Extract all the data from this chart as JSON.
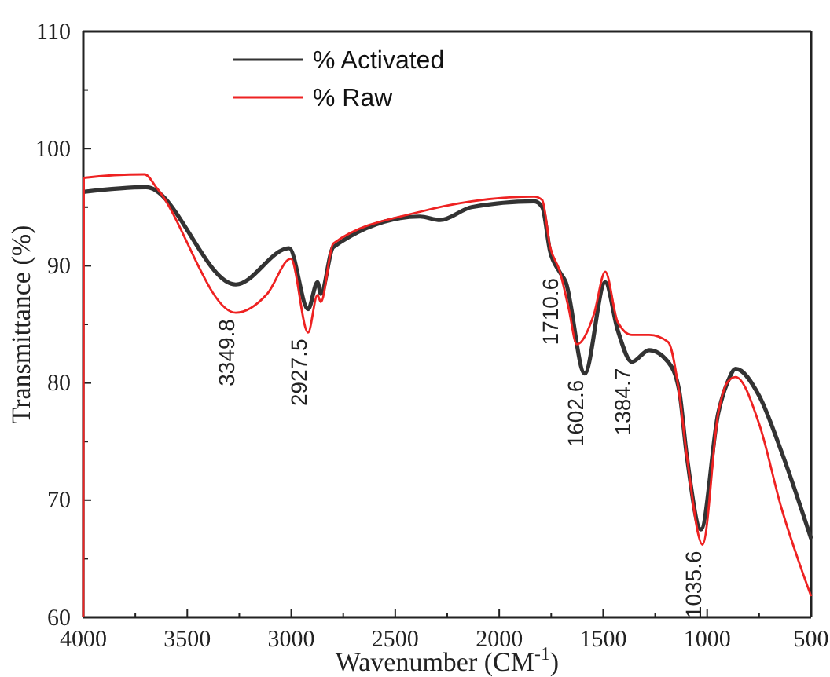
{
  "chart_data": {
    "type": "line",
    "xlabel": "Wavenumber (CM$^{-1}$)",
    "ylabel": "Transmittance (%)",
    "xlim": [
      4000,
      500
    ],
    "ylim": [
      60,
      110
    ],
    "xticks": [
      4000,
      {
        "value": 3750,
        "label": null
      },
      3500,
      {
        "value": 3250,
        "label": null
      },
      3000,
      {
        "value": 2750,
        "label": null
      },
      2500,
      {
        "value": 2250,
        "label": null
      },
      2000,
      {
        "value": 1750,
        "label": null
      },
      1500,
      {
        "value": 1250,
        "label": null
      },
      1000,
      {
        "value": 750,
        "label": null
      },
      500
    ],
    "yticks": [
      60,
      {
        "value": 65,
        "label": null
      },
      70,
      {
        "value": 75,
        "label": null
      },
      80,
      {
        "value": 85,
        "label": null
      },
      90,
      {
        "value": 95,
        "label": null
      },
      100,
      {
        "value": 105,
        "label": null
      },
      110
    ],
    "grid": false,
    "legend": "top left",
    "marker": "none",
    "line_style": "solid",
    "series": [
      {
        "name": "% Activated",
        "color": "#333333",
        "x": [
          4000,
          3698,
          3267,
          3010,
          2919,
          2874,
          2858,
          2798,
          2382,
          2284,
          2133,
          1831,
          1793,
          1755,
          1710,
          1680,
          1589,
          1490,
          1430,
          1362,
          1279,
          1188,
          1135,
          1098,
          1030,
          947,
          901,
          863,
          750,
          644,
          500
        ],
        "values": [
          96.3,
          96.7,
          88.4,
          91.5,
          86.3,
          88.6,
          87.6,
          91.6,
          94.2,
          93.9,
          95.0,
          95.5,
          95.0,
          91.2,
          89.5,
          88.6,
          80.8,
          88.6,
          84.5,
          81.8,
          82.8,
          81.8,
          79.4,
          73.8,
          67.5,
          77.4,
          80.1,
          81.2,
          78.9,
          74.2,
          66.7
        ]
      },
      {
        "name": "% Raw",
        "color": "#ee2222",
        "x": [
          4000,
          3998,
          3705,
          3645,
          3267,
          3116,
          3002,
          2919,
          2874,
          2858,
          2798,
          2382,
          2133,
          1831,
          1793,
          1755,
          1710,
          1665,
          1627,
          1544,
          1490,
          1430,
          1362,
          1279,
          1188,
          1135,
          1098,
          1022,
          947,
          901,
          863,
          750,
          644,
          500
        ],
        "values": [
          60,
          97.5,
          97.8,
          96.6,
          86.0,
          87.6,
          90.6,
          84.3,
          87.5,
          86.9,
          91.9,
          94.6,
          95.5,
          95.9,
          95.6,
          91.6,
          89.6,
          86.3,
          83.3,
          85.9,
          89.5,
          85.2,
          84.1,
          84.1,
          83.5,
          79.2,
          73.8,
          66.2,
          77.4,
          80.1,
          80.5,
          76.5,
          69.4,
          61.8
        ]
      }
    ],
    "annotations": [
      {
        "text": "3349.8",
        "x": 3267,
        "y": 86.0
      },
      {
        "text": "2927.5",
        "x": 2919,
        "y": 84.3
      },
      {
        "text": "1710.6",
        "x": 1710,
        "y": 89.5
      },
      {
        "text": "1602.6",
        "x": 1589,
        "y": 80.8
      },
      {
        "text": "1384.7",
        "x": 1362,
        "y": 81.8
      },
      {
        "text": "1035.6",
        "x": 1022,
        "y": 66.2
      }
    ]
  }
}
